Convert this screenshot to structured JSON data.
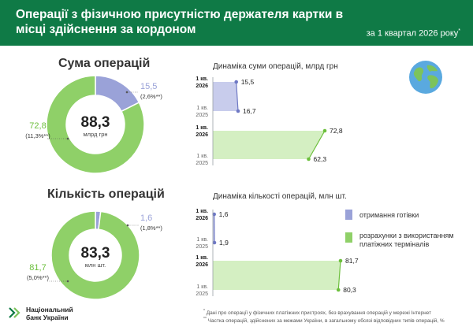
{
  "header": {
    "title": "Операції з фізичною присутністю держателя картки в місці здійснення за кордоном",
    "period": "за 1 квартал 2026 року",
    "period_mark": "*"
  },
  "colors": {
    "green_dark": "#0f7a46",
    "cash": "#9aa2d8",
    "payments": "#8fd068",
    "payments_dim": "#d4efc2",
    "cash_dim": "#c8ccec"
  },
  "icons": {
    "globe": "globe-icon",
    "logo": "nbu-logo-icon"
  },
  "sections": {
    "sum_title": "Сума операцій",
    "count_title": "Кількість операцій"
  },
  "legend": [
    {
      "label": "отримання готівки",
      "color": "#9aa2d8"
    },
    {
      "label": "розрахунки з використанням платіжних терміналів",
      "color": "#8fd068"
    }
  ],
  "logo": {
    "line1": "Національний",
    "line2": "банк України"
  },
  "notes": [
    {
      "mark": "*",
      "text": "Дані про операції у фізичних платіжних пристроях, без врахування операцій у мережі Інтернет"
    },
    {
      "mark": "**",
      "text": "Частка операцій, здійснених за межами України, в загальному обсязі відповідних типів операцій, %"
    }
  ],
  "chart_data": [
    {
      "type": "pie",
      "title": "Сума операцій",
      "center_value": "88,3",
      "center_unit": "млрд грн",
      "slices": [
        {
          "name": "отримання готівки",
          "value": 15.5,
          "label": "15,5",
          "share": "(2,6%**)"
        },
        {
          "name": "розрахунки з використанням платіжних терміналів",
          "value": 72.8,
          "label": "72,8",
          "share": "(11,3%**)"
        }
      ]
    },
    {
      "type": "bar",
      "title": "Динаміка суми операцій, млрд грн",
      "categories": [
        "1 кв. 2026",
        "1 кв. 2025"
      ],
      "series": [
        {
          "name": "отримання готівки",
          "values": [
            15.5,
            16.7
          ],
          "labels": [
            "15,5",
            "16,7"
          ]
        },
        {
          "name": "розрахунки з використанням платіжних терміналів",
          "values": [
            72.8,
            62.3
          ],
          "labels": [
            "72,8",
            "62,3"
          ]
        }
      ]
    },
    {
      "type": "pie",
      "title": "Кількість операцій",
      "center_value": "83,3",
      "center_unit": "млн шт.",
      "slices": [
        {
          "name": "отримання готівки",
          "value": 1.6,
          "label": "1,6",
          "share": "(1,8%**)"
        },
        {
          "name": "розрахунки з використанням платіжних терміналів",
          "value": 81.7,
          "label": "81,7",
          "share": "(5,0%**)"
        }
      ]
    },
    {
      "type": "bar",
      "title": "Динаміка кількості операцій, млн шт.",
      "categories": [
        "1 кв. 2026",
        "1 кв. 2025"
      ],
      "series": [
        {
          "name": "отримання готівки",
          "values": [
            1.6,
            1.9
          ],
          "labels": [
            "1,6",
            "1,9"
          ]
        },
        {
          "name": "розрахунки з використанням платіжних терміналів",
          "values": [
            81.7,
            80.3
          ],
          "labels": [
            "81,7",
            "80,3"
          ]
        }
      ]
    }
  ]
}
